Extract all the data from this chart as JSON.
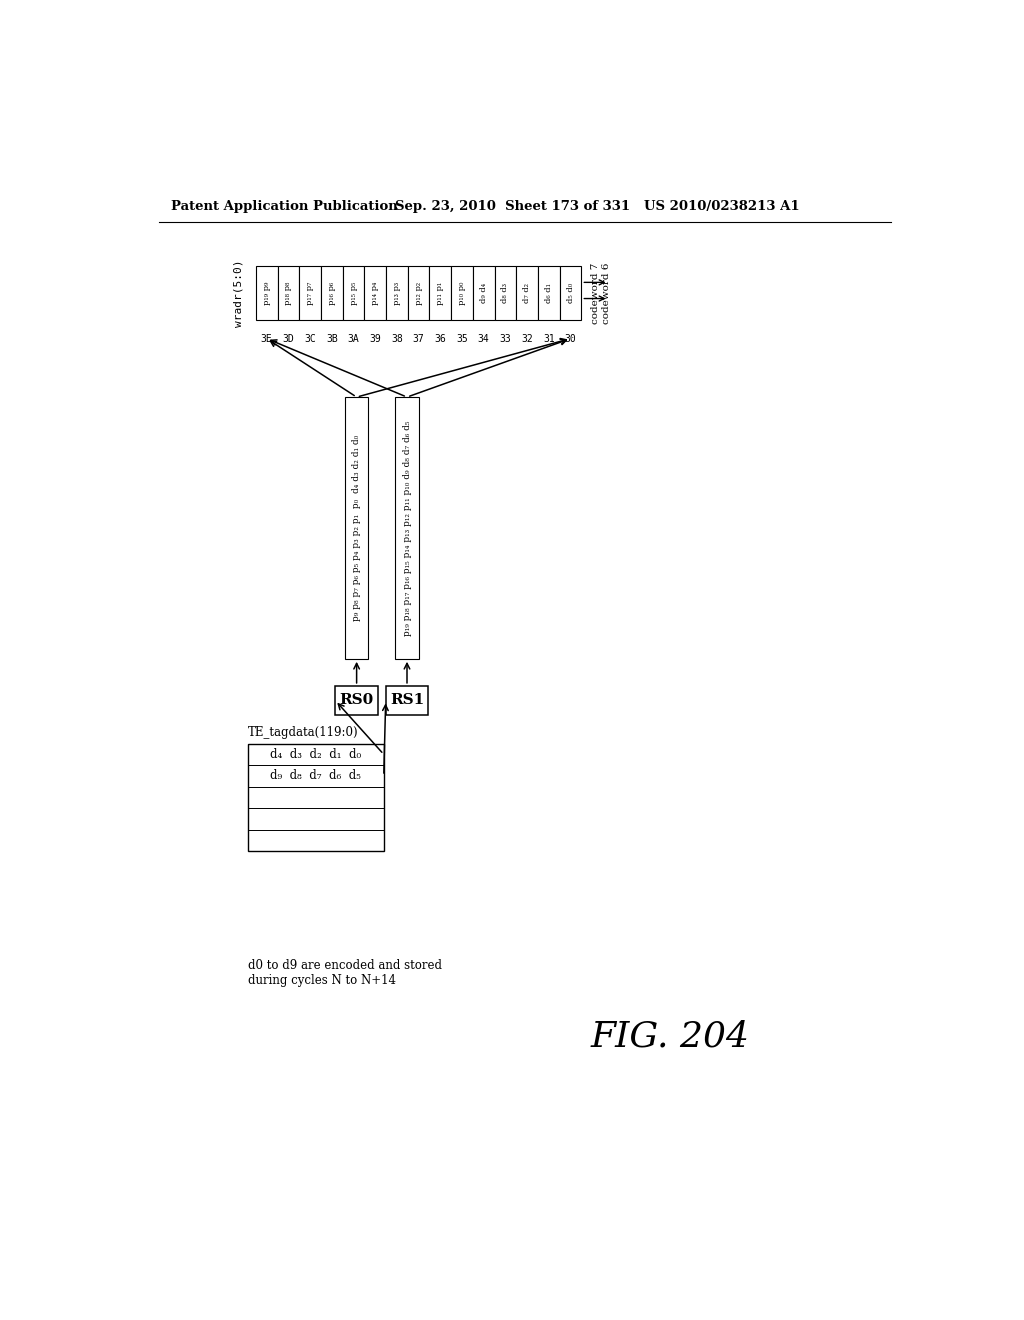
{
  "background_color": "#ffffff",
  "header_left": "Patent Application Publication",
  "header_right": "Sep. 23, 2010  Sheet 173 of 331   US 2010/0238213 A1",
  "fig_label": "FIG. 204",
  "te_tagdata_label": "TE_tagdata(119:0)",
  "te_row0": "d₄  d₃  d₂  d₁  d₀",
  "te_row1": "d₉  d₈  d₇  d₆  d₅",
  "rs0_label": "RS0",
  "rs1_label": "RS1",
  "rs0_bar_text": "p₉ p₈ p₇ p₆ p₅ p₄ p₃ p₂ p₁  p₀  d₄ d₃ d₂ d₁ d₀",
  "rs1_bar_text": "p₁₉ p₁₈ p₁₇ p₁₆ p₁₅ p₁₄ p₁₃ p₁₂ p₁₁ p₁₀ d₉ d₈ d₇ d₆ d₅",
  "wradr_label": "wradr(5:0)",
  "codeword7_label": "codeword 7",
  "codeword6_label": "codeword 6",
  "mem_cells": [
    {
      "addr": "3E",
      "content": "p₁₉ p₉"
    },
    {
      "addr": "3D",
      "content": "p₁₈ p₈"
    },
    {
      "addr": "3C",
      "content": "p₁₇ p₇"
    },
    {
      "addr": "3B",
      "content": "p₁₆ p₆"
    },
    {
      "addr": "3A",
      "content": "p₁₅ p₅"
    },
    {
      "addr": "39",
      "content": "p₁₄ p₄"
    },
    {
      "addr": "38",
      "content": "p₁₃ p₃"
    },
    {
      "addr": "37",
      "content": "p₁₂ p₂"
    },
    {
      "addr": "36",
      "content": "p₁₁ p₁"
    },
    {
      "addr": "35",
      "content": "p₁₀ p₀"
    },
    {
      "addr": "34",
      "content": "d₉ d₄"
    },
    {
      "addr": "33",
      "content": "d₈ d₃"
    },
    {
      "addr": "32",
      "content": "d₇ d₂"
    },
    {
      "addr": "31",
      "content": "d₆ d₁"
    },
    {
      "addr": "30",
      "content": "d₅ d₀"
    }
  ],
  "note_text": "d0 to d9 are encoded and stored\nduring cycles N to N+14"
}
